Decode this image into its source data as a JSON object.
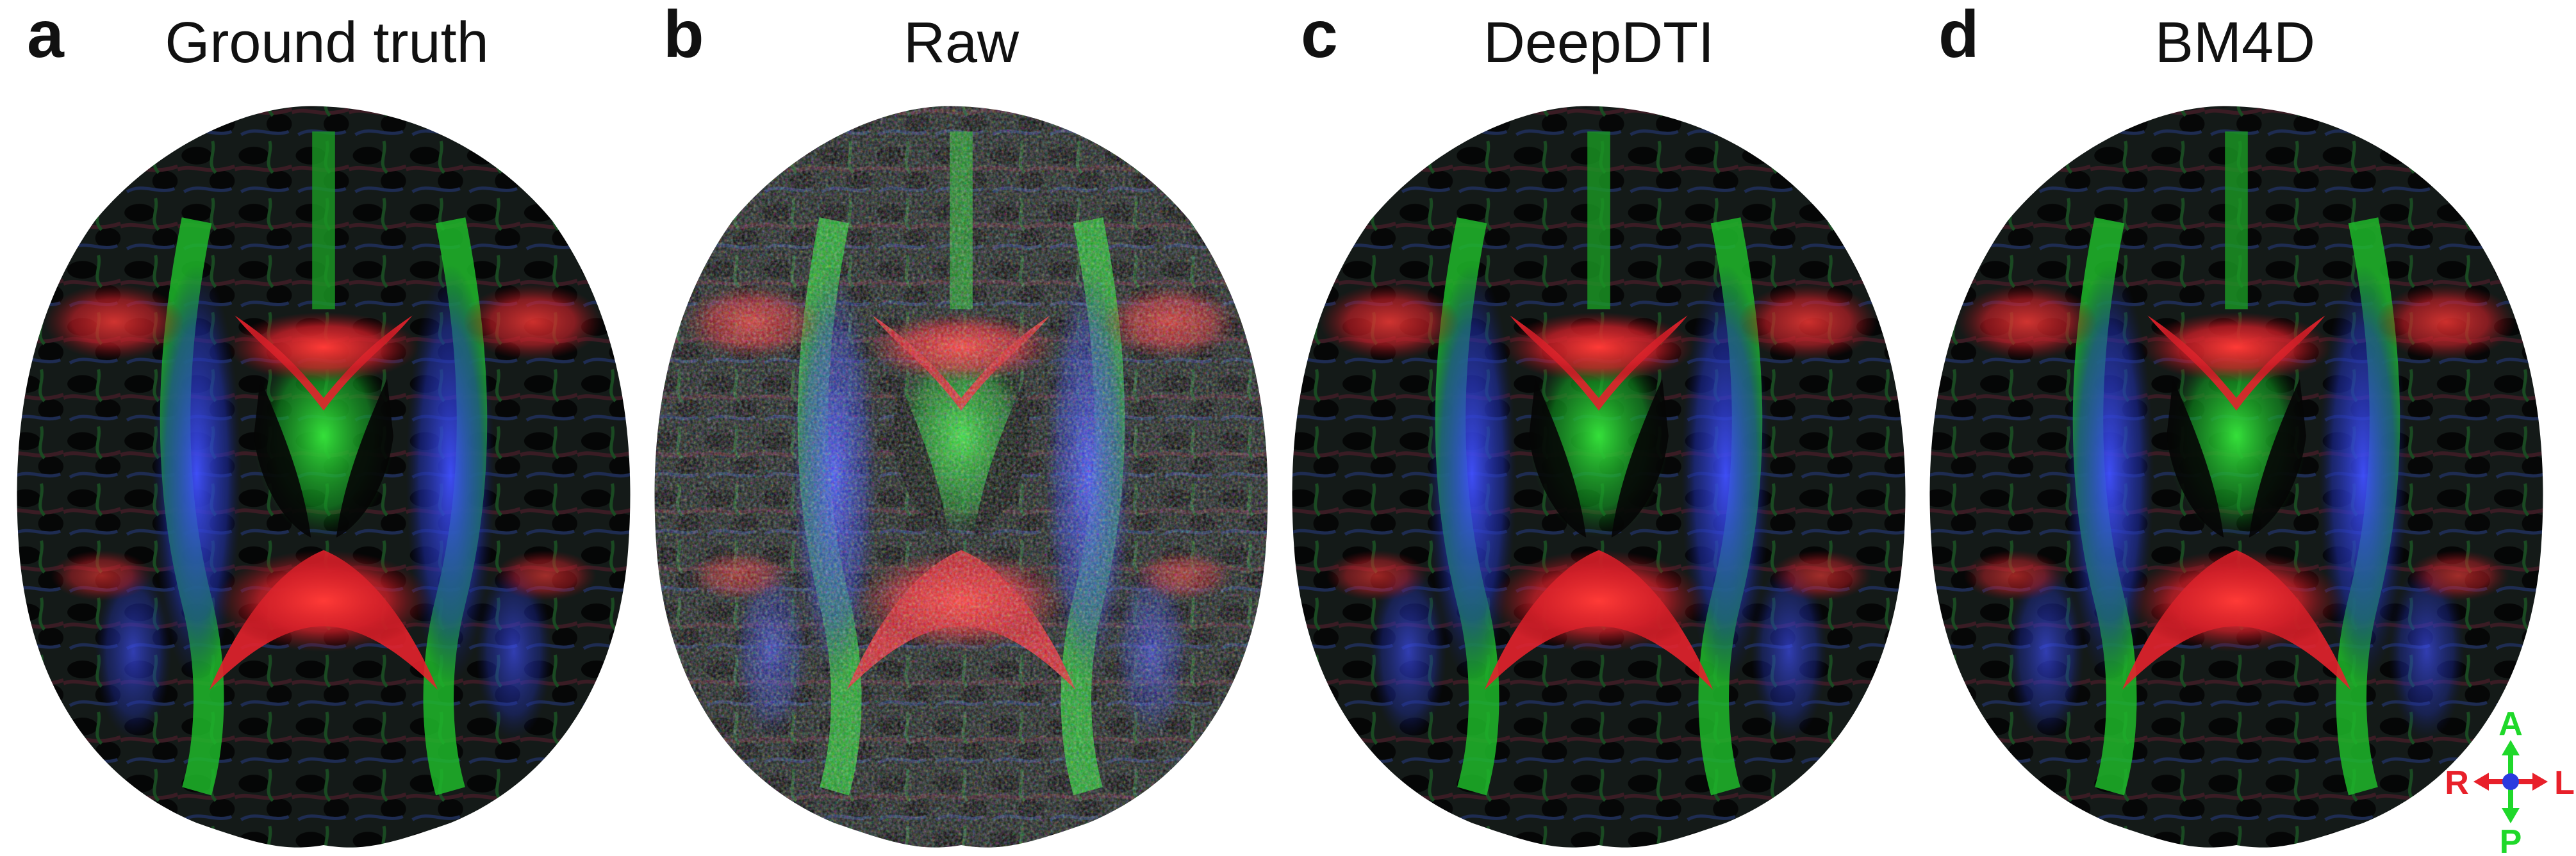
{
  "figure": {
    "panels": [
      {
        "letter": "a",
        "title": "Ground truth"
      },
      {
        "letter": "b",
        "title": "Raw"
      },
      {
        "letter": "c",
        "title": "DeepDTI"
      },
      {
        "letter": "d",
        "title": "BM4D"
      }
    ],
    "orientation": {
      "anterior": "A",
      "posterior": "P",
      "right": "R",
      "left": "L"
    }
  },
  "colors": {
    "red": "#e8202a",
    "green": "#1fd82a",
    "blue": "#2a3adf",
    "background": "#ffffff"
  }
}
